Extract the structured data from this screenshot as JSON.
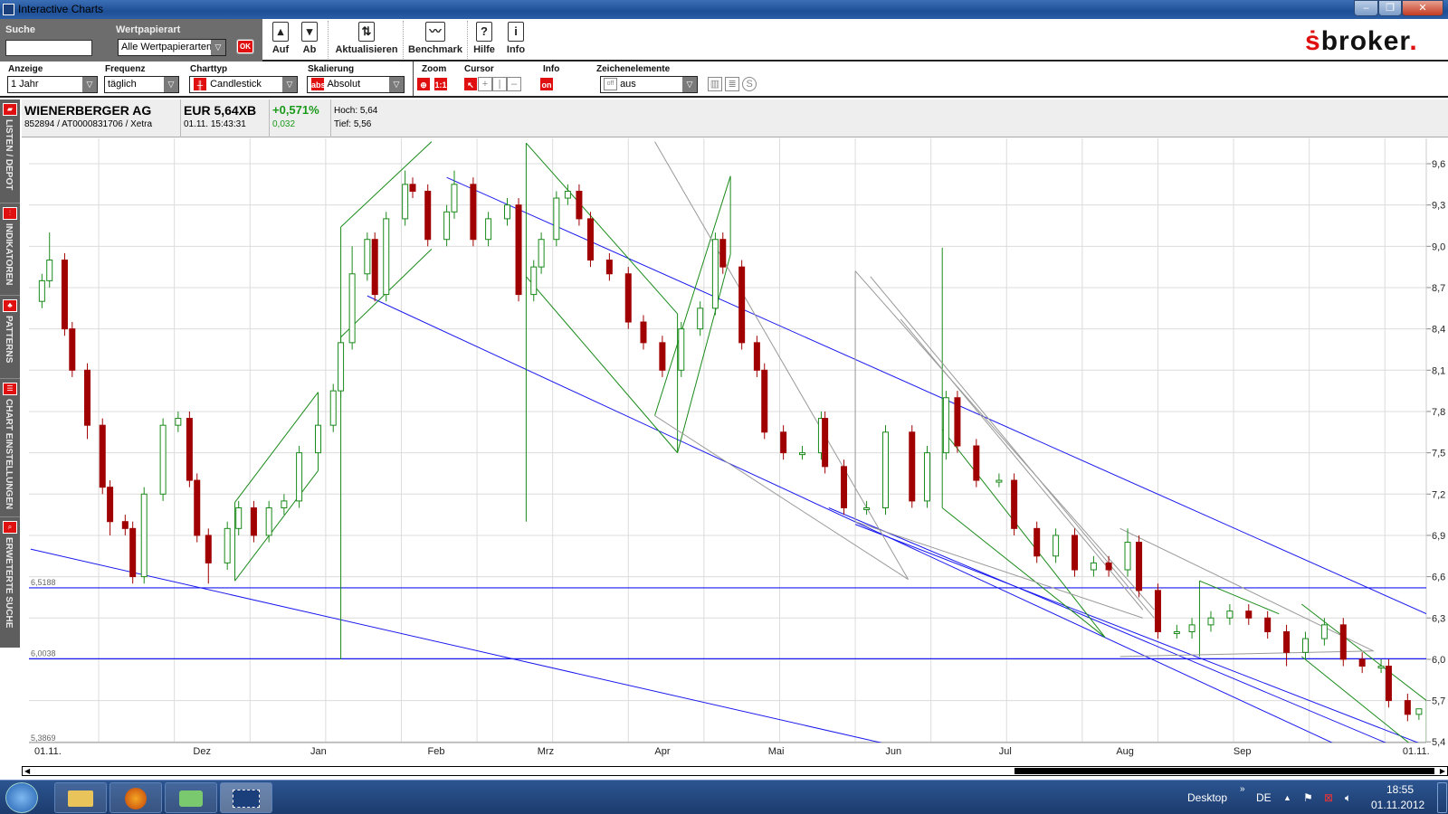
{
  "window": {
    "title": "Interactive Charts",
    "icon": "app-grid-icon"
  },
  "toolbar": {
    "search_label": "Suche",
    "search_value": "",
    "security_type_label": "Wertpapierart",
    "security_type_value": "Alle Wertpapierarten",
    "ok_label": "OK",
    "up_label": "Auf",
    "down_label": "Ab",
    "refresh_label": "Aktualisieren",
    "benchmark_label": "Benchmark",
    "help_label": "Hilfe",
    "info_label": "Info",
    "brand": "broker"
  },
  "controls": {
    "display_label": "Anzeige",
    "display_value": "1 Jahr",
    "frequency_label": "Frequenz",
    "frequency_value": "täglich",
    "charttype_label": "Charttyp",
    "charttype_value": "Candlestick",
    "scaling_label": "Skalierung",
    "scaling_value": "Absolut",
    "scaling_icon_text": "abs",
    "zoom_label": "Zoom",
    "zoom_reset": "1:1",
    "cursor_label": "Cursor",
    "info_label": "Info",
    "info_toggle": "on",
    "drawing_label": "Zeichenelemente",
    "drawing_value": "aus",
    "drawing_icon_text": "off"
  },
  "quote": {
    "name": "WIENERBERGER AG",
    "ids": "852894 / AT0000831706 / Xetra",
    "price": "EUR 5,64XB",
    "time": "01.11. 15:43:31",
    "change_pct": "+0,571%",
    "change_abs": "0,032",
    "high": "Hoch: 5,64",
    "low": "Tief: 5,56",
    "colors": {
      "positive": "#1a9a1a"
    }
  },
  "sidebar": {
    "items": [
      {
        "label": "LISTEN / DEPOT",
        "icon": "folder-icon"
      },
      {
        "label": "INDIKATOREN",
        "icon": "indicator-icon"
      },
      {
        "label": "PATTERNS",
        "icon": "pattern-icon"
      },
      {
        "label": "CHART EINSTELLUNGEN",
        "icon": "settings-list-icon"
      },
      {
        "label": "ERWETERTE SUCHE",
        "icon": "magnifier-icon"
      }
    ]
  },
  "chart_data": {
    "type": "candlestick",
    "x_range": [
      "2011-11-01",
      "2012-11-01"
    ],
    "ylim": [
      5.4,
      9.6
    ],
    "y_ticks": [
      "9,6",
      "9,3",
      "9,0",
      "8,7",
      "8,4",
      "8,1",
      "7,8",
      "7,5",
      "7,2",
      "6,9",
      "6,6",
      "6,3",
      "6,0",
      "5,7",
      "5,4"
    ],
    "x_tick_labels": [
      {
        "label": "01.11.",
        "date": "2011-11-01"
      },
      {
        "label": "Dez",
        "date": "2011-12-01"
      },
      {
        "label": "Jan",
        "date": "2012-01-01"
      },
      {
        "label": "Feb",
        "date": "2012-02-01"
      },
      {
        "label": "Mrz",
        "date": "2012-03-01"
      },
      {
        "label": "Apr",
        "date": "2012-04-01"
      },
      {
        "label": "Mai",
        "date": "2012-05-01"
      },
      {
        "label": "Jun",
        "date": "2012-06-01"
      },
      {
        "label": "Jul",
        "date": "2012-07-01"
      },
      {
        "label": "Aug",
        "date": "2012-08-01"
      },
      {
        "label": "Sep",
        "date": "2012-09-01"
      },
      {
        "label": "01.11.",
        "date": "2012-11-01"
      }
    ],
    "grid": true,
    "colors": {
      "up": "#1a8a1a",
      "down": "#a00000",
      "trend_blue": "#1a1aee",
      "trend_green": "#1a8a1a",
      "trend_gray": "#999999"
    },
    "candles_fields": [
      "date",
      "open",
      "high",
      "low",
      "close"
    ],
    "candles": [
      [
        "2011-11-03",
        8.6,
        8.8,
        8.55,
        8.75
      ],
      [
        "2011-11-05",
        8.75,
        9.1,
        8.7,
        8.9
      ],
      [
        "2011-11-09",
        8.9,
        8.95,
        8.35,
        8.4
      ],
      [
        "2011-11-11",
        8.4,
        8.45,
        8.05,
        8.1
      ],
      [
        "2011-11-15",
        8.1,
        8.15,
        7.6,
        7.7
      ],
      [
        "2011-11-19",
        7.7,
        7.75,
        7.2,
        7.25
      ],
      [
        "2011-11-21",
        7.25,
        7.3,
        6.9,
        7.0
      ],
      [
        "2011-11-25",
        7.0,
        7.05,
        6.9,
        6.95
      ],
      [
        "2011-11-27",
        6.95,
        7.0,
        6.55,
        6.6
      ],
      [
        "2011-11-30",
        6.6,
        7.25,
        6.55,
        7.2
      ],
      [
        "2011-12-05",
        7.2,
        7.75,
        7.15,
        7.7
      ],
      [
        "2011-12-09",
        7.7,
        7.8,
        7.65,
        7.75
      ],
      [
        "2011-12-12",
        7.75,
        7.8,
        7.25,
        7.3
      ],
      [
        "2011-12-14",
        7.3,
        7.35,
        6.85,
        6.9
      ],
      [
        "2011-12-17",
        6.9,
        6.95,
        6.55,
        6.7
      ],
      [
        "2011-12-22",
        6.7,
        7.0,
        6.65,
        6.95
      ],
      [
        "2011-12-25",
        6.95,
        7.15,
        6.9,
        7.1
      ],
      [
        "2011-12-29",
        7.1,
        7.15,
        6.85,
        6.9
      ],
      [
        "2012-01-02",
        6.9,
        7.15,
        6.85,
        7.1
      ],
      [
        "2012-01-06",
        7.1,
        7.2,
        7.05,
        7.15
      ],
      [
        "2012-01-10",
        7.15,
        7.55,
        7.1,
        7.5
      ],
      [
        "2012-01-15",
        7.5,
        7.75,
        7.45,
        7.7
      ],
      [
        "2012-01-19",
        7.7,
        8.0,
        7.65,
        7.95
      ],
      [
        "2012-01-21",
        7.95,
        8.35,
        7.9,
        8.3
      ],
      [
        "2012-01-24",
        8.3,
        9.0,
        8.25,
        8.8
      ],
      [
        "2012-01-28",
        8.8,
        9.1,
        8.75,
        9.05
      ],
      [
        "2012-01-30",
        9.05,
        9.1,
        8.6,
        8.65
      ],
      [
        "2012-02-02",
        8.65,
        9.25,
        8.6,
        9.2
      ],
      [
        "2012-02-07",
        9.2,
        9.55,
        9.15,
        9.45
      ],
      [
        "2012-02-09",
        9.45,
        9.5,
        9.35,
        9.4
      ],
      [
        "2012-02-13",
        9.4,
        9.45,
        9.0,
        9.05
      ],
      [
        "2012-02-18",
        9.05,
        9.3,
        9.0,
        9.25
      ],
      [
        "2012-02-20",
        9.25,
        9.55,
        9.2,
        9.45
      ],
      [
        "2012-02-25",
        9.45,
        9.5,
        9.0,
        9.05
      ],
      [
        "2012-02-29",
        9.05,
        9.25,
        9.0,
        9.2
      ],
      [
        "2012-03-05",
        9.2,
        9.35,
        9.15,
        9.3
      ],
      [
        "2012-03-08",
        9.3,
        9.35,
        8.6,
        8.65
      ],
      [
        "2012-03-12",
        8.65,
        8.9,
        8.6,
        8.85
      ],
      [
        "2012-03-14",
        8.85,
        9.1,
        8.8,
        9.05
      ],
      [
        "2012-03-18",
        9.05,
        9.4,
        9.0,
        9.35
      ],
      [
        "2012-03-21",
        9.35,
        9.45,
        9.3,
        9.4
      ],
      [
        "2012-03-24",
        9.4,
        9.45,
        9.15,
        9.2
      ],
      [
        "2012-03-27",
        9.2,
        9.25,
        8.85,
        8.9
      ],
      [
        "2012-04-01",
        8.9,
        8.95,
        8.75,
        8.8
      ],
      [
        "2012-04-06",
        8.8,
        8.85,
        8.4,
        8.45
      ],
      [
        "2012-04-10",
        8.45,
        8.5,
        8.25,
        8.3
      ],
      [
        "2012-04-15",
        8.3,
        8.35,
        8.05,
        8.1
      ],
      [
        "2012-04-20",
        8.1,
        8.45,
        8.05,
        8.4
      ],
      [
        "2012-04-25",
        8.4,
        8.6,
        8.35,
        8.55
      ],
      [
        "2012-04-29",
        8.55,
        9.1,
        8.5,
        9.05
      ],
      [
        "2012-05-01",
        9.05,
        9.1,
        8.8,
        8.85
      ],
      [
        "2012-05-06",
        8.85,
        8.9,
        8.25,
        8.3
      ],
      [
        "2012-05-10",
        8.3,
        8.35,
        8.05,
        8.1
      ],
      [
        "2012-05-12",
        8.1,
        8.15,
        7.6,
        7.65
      ],
      [
        "2012-05-17",
        7.65,
        7.7,
        7.45,
        7.5
      ],
      [
        "2012-05-22",
        7.5,
        7.55,
        7.45,
        7.5
      ],
      [
        "2012-05-27",
        7.5,
        7.8,
        7.45,
        7.75
      ],
      [
        "2012-05-28",
        7.75,
        7.8,
        7.35,
        7.4
      ],
      [
        "2012-06-02",
        7.4,
        7.45,
        7.05,
        7.1
      ],
      [
        "2012-06-08",
        7.1,
        7.15,
        7.05,
        7.1
      ],
      [
        "2012-06-13",
        7.1,
        7.7,
        7.05,
        7.65
      ],
      [
        "2012-06-20",
        7.65,
        7.7,
        7.1,
        7.15
      ],
      [
        "2012-06-24",
        7.15,
        7.55,
        7.1,
        7.5
      ],
      [
        "2012-06-29",
        7.5,
        7.95,
        7.45,
        7.9
      ],
      [
        "2012-07-02",
        7.9,
        7.95,
        7.5,
        7.55
      ],
      [
        "2012-07-07",
        7.55,
        7.6,
        7.25,
        7.3
      ],
      [
        "2012-07-13",
        7.3,
        7.35,
        7.25,
        7.3
      ],
      [
        "2012-07-17",
        7.3,
        7.35,
        6.9,
        6.95
      ],
      [
        "2012-07-23",
        6.95,
        7.0,
        6.7,
        6.75
      ],
      [
        "2012-07-28",
        6.75,
        6.95,
        6.7,
        6.9
      ],
      [
        "2012-08-02",
        6.9,
        6.95,
        6.6,
        6.65
      ],
      [
        "2012-08-07",
        6.65,
        6.75,
        6.6,
        6.7
      ],
      [
        "2012-08-11",
        6.7,
        6.75,
        6.6,
        6.65
      ],
      [
        "2012-08-16",
        6.65,
        6.95,
        6.6,
        6.85
      ],
      [
        "2012-08-19",
        6.85,
        6.9,
        6.45,
        6.5
      ],
      [
        "2012-08-24",
        6.5,
        6.55,
        6.15,
        6.2
      ],
      [
        "2012-08-29",
        6.2,
        6.25,
        6.15,
        6.2
      ],
      [
        "2012-09-02",
        6.2,
        6.3,
        6.15,
        6.25
      ],
      [
        "2012-09-07",
        6.25,
        6.35,
        6.2,
        6.3
      ],
      [
        "2012-09-12",
        6.3,
        6.4,
        6.25,
        6.35
      ],
      [
        "2012-09-17",
        6.35,
        6.4,
        6.25,
        6.3
      ],
      [
        "2012-09-22",
        6.3,
        6.35,
        6.15,
        6.2
      ],
      [
        "2012-09-27",
        6.2,
        6.25,
        5.95,
        6.05
      ],
      [
        "2012-10-02",
        6.05,
        6.2,
        6.0,
        6.15
      ],
      [
        "2012-10-07",
        6.15,
        6.3,
        6.1,
        6.25
      ],
      [
        "2012-10-12",
        6.25,
        6.3,
        5.95,
        6.0
      ],
      [
        "2012-10-17",
        6.0,
        6.05,
        5.9,
        5.95
      ],
      [
        "2012-10-22",
        5.95,
        6.0,
        5.9,
        5.95
      ],
      [
        "2012-10-24",
        5.95,
        6.0,
        5.65,
        5.7
      ],
      [
        "2012-10-29",
        5.7,
        5.75,
        5.55,
        5.6
      ],
      [
        "2012-11-01",
        5.6,
        5.64,
        5.56,
        5.64
      ]
    ],
    "horizontal_lines": [
      {
        "value": 6.5188,
        "label": "6,5188"
      },
      {
        "value": 6.0038,
        "label": "6,0038"
      },
      {
        "value": 5.3869,
        "label": "5,3869"
      }
    ],
    "trendlines": [
      {
        "color": "blue",
        "from": [
          "2011-10-31",
          6.8
        ],
        "to": [
          "2012-06-30",
          5.28
        ]
      },
      {
        "color": "blue",
        "from": [
          "2012-02-18",
          9.5
        ],
        "to": [
          "2012-11-03",
          6.33
        ]
      },
      {
        "color": "blue",
        "from": [
          "2012-01-28",
          8.64
        ],
        "to": [
          "2012-10-18",
          5.28
        ]
      },
      {
        "color": "blue",
        "from": [
          "2012-05-29",
          7.1
        ],
        "to": [
          "2012-11-02",
          5.28
        ]
      },
      {
        "color": "blue",
        "from": [
          "2012-06-05",
          6.98
        ],
        "to": [
          "2012-11-03",
          5.37
        ]
      },
      {
        "color": "green",
        "from": [
          "2011-12-24",
          6.57
        ],
        "to": [
          "2012-01-15",
          7.37
        ]
      },
      {
        "color": "green",
        "from": [
          "2011-12-24",
          7.14
        ],
        "to": [
          "2012-01-15",
          7.94
        ]
      },
      {
        "color": "green",
        "from": [
          "2011-12-24",
          6.57
        ],
        "to": [
          "2011-12-24",
          7.14
        ]
      },
      {
        "color": "green",
        "from": [
          "2012-01-15",
          7.37
        ],
        "to": [
          "2012-01-15",
          7.94
        ]
      },
      {
        "color": "green",
        "from": [
          "2012-01-21",
          6.0
        ],
        "to": [
          "2012-01-21",
          9.14
        ]
      },
      {
        "color": "green",
        "from": [
          "2012-01-21",
          9.14
        ],
        "to": [
          "2012-02-14",
          9.76
        ]
      },
      {
        "color": "green",
        "from": [
          "2012-01-21",
          8.34
        ],
        "to": [
          "2012-02-14",
          8.98
        ]
      },
      {
        "color": "green",
        "from": [
          "2012-03-10",
          9.75
        ],
        "to": [
          "2012-03-10",
          7.0
        ]
      },
      {
        "color": "green",
        "from": [
          "2012-03-10",
          9.75
        ],
        "to": [
          "2012-04-19",
          8.51
        ]
      },
      {
        "color": "green",
        "from": [
          "2012-03-10",
          8.78
        ],
        "to": [
          "2012-04-19",
          7.5
        ]
      },
      {
        "color": "green",
        "from": [
          "2012-04-13",
          7.77
        ],
        "to": [
          "2012-05-03",
          9.51
        ]
      },
      {
        "color": "green",
        "from": [
          "2012-04-19",
          7.5
        ],
        "to": [
          "2012-04-19",
          8.51
        ]
      },
      {
        "color": "green",
        "from": [
          "2012-04-19",
          7.5
        ],
        "to": [
          "2012-05-03",
          8.94
        ]
      },
      {
        "color": "green",
        "from": [
          "2012-05-03",
          9.51
        ],
        "to": [
          "2012-05-03",
          8.94
        ]
      },
      {
        "color": "green",
        "from": [
          "2012-06-28",
          8.99
        ],
        "to": [
          "2012-06-28",
          7.1
        ]
      },
      {
        "color": "green",
        "from": [
          "2012-06-28",
          7.67
        ],
        "to": [
          "2012-08-10",
          6.16
        ]
      },
      {
        "color": "green",
        "from": [
          "2012-06-28",
          7.1
        ],
        "to": [
          "2012-08-10",
          6.16
        ]
      },
      {
        "color": "green",
        "from": [
          "2012-09-04",
          6.57
        ],
        "to": [
          "2012-09-25",
          6.33
        ]
      },
      {
        "color": "green",
        "from": [
          "2012-09-04",
          6.57
        ],
        "to": [
          "2012-09-04",
          6.02
        ]
      },
      {
        "color": "green",
        "from": [
          "2012-10-01",
          6.4
        ],
        "to": [
          "2012-11-03",
          5.7
        ]
      },
      {
        "color": "green",
        "from": [
          "2012-10-01",
          6.02
        ],
        "to": [
          "2012-11-03",
          5.29
        ]
      },
      {
        "color": "green",
        "from": [
          "2012-11-03",
          5.7
        ],
        "to": [
          "2012-11-03",
          5.29
        ]
      },
      {
        "color": "gray",
        "from": [
          "2012-04-13",
          9.76
        ],
        "to": [
          "2012-06-19",
          6.58
        ]
      },
      {
        "color": "gray",
        "from": [
          "2012-04-13",
          7.77
        ],
        "to": [
          "2012-06-19",
          6.58
        ]
      },
      {
        "color": "gray",
        "from": [
          "2012-06-05",
          8.82
        ],
        "to": [
          "2012-08-23",
          6.36
        ]
      },
      {
        "color": "gray",
        "from": [
          "2012-06-09",
          8.78
        ],
        "to": [
          "2012-08-23",
          6.3
        ]
      },
      {
        "color": "gray",
        "from": [
          "2012-06-17",
          8.47
        ],
        "to": [
          "2012-08-20",
          6.36
        ]
      },
      {
        "color": "gray",
        "from": [
          "2012-06-05",
          8.82
        ],
        "to": [
          "2012-06-05",
          7.0
        ]
      },
      {
        "color": "gray",
        "from": [
          "2012-06-05",
          7.0
        ],
        "to": [
          "2012-08-20",
          6.3
        ]
      },
      {
        "color": "gray",
        "from": [
          "2012-08-14",
          6.95
        ],
        "to": [
          "2012-10-20",
          6.06
        ]
      },
      {
        "color": "gray",
        "from": [
          "2012-08-14",
          6.02
        ],
        "to": [
          "2012-10-20",
          6.06
        ]
      }
    ]
  },
  "taskbar": {
    "desktop_label": "Desktop",
    "chevron": "»",
    "language": "DE",
    "time": "18:55",
    "date": "01.11.2012",
    "apps": [
      "explorer-icon",
      "firefox-icon",
      "app-icon",
      "interactive-charts-icon"
    ]
  }
}
